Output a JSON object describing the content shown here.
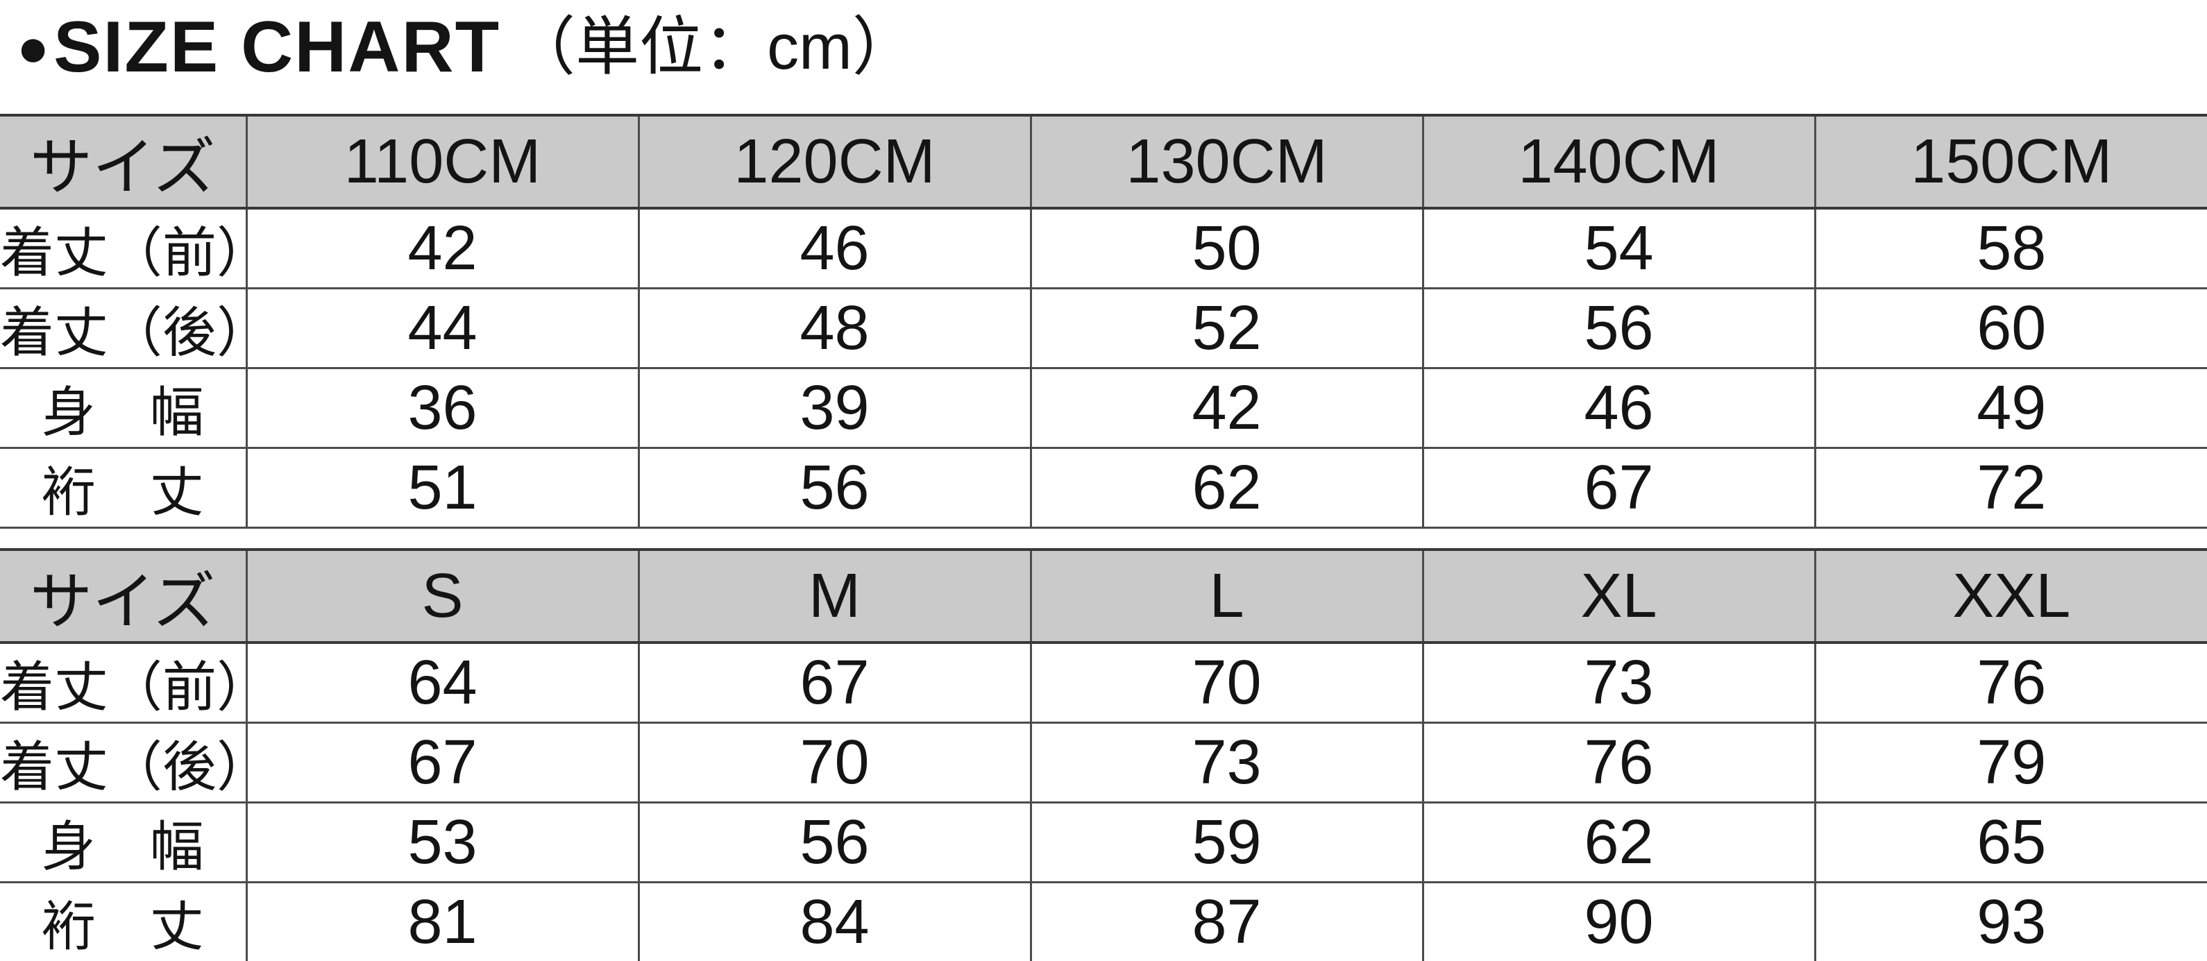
{
  "title": {
    "bullet": "●",
    "main": "SIZE CHART",
    "unit": "（単位：cm）"
  },
  "colors": {
    "background": "#ffffff",
    "text": "#141414",
    "header_bg": "#cacaca",
    "line_dark": "#383838",
    "line_mid": "#4c4c4c"
  },
  "chart_data": [
    {
      "type": "table",
      "title": "SIZE CHART（単位：cm） kids sizes",
      "columns": [
        "サイズ",
        "110CM",
        "120CM",
        "130CM",
        "140CM",
        "150CM"
      ],
      "rows": [
        [
          "着丈（前）",
          "42",
          "46",
          "50",
          "54",
          "58"
        ],
        [
          "着丈（後）",
          "44",
          "48",
          "52",
          "56",
          "60"
        ],
        [
          "身　幅",
          "36",
          "39",
          "42",
          "46",
          "49"
        ],
        [
          "裄　丈",
          "51",
          "56",
          "62",
          "67",
          "72"
        ]
      ]
    },
    {
      "type": "table",
      "title": "SIZE CHART（単位：cm） adult sizes",
      "columns": [
        "サイズ",
        "S",
        "M",
        "L",
        "XL",
        "XXL"
      ],
      "rows": [
        [
          "着丈（前）",
          "64",
          "67",
          "70",
          "73",
          "76"
        ],
        [
          "着丈（後）",
          "67",
          "70",
          "73",
          "76",
          "79"
        ],
        [
          "身　幅",
          "53",
          "56",
          "59",
          "62",
          "65"
        ],
        [
          "裄　丈",
          "81",
          "84",
          "87",
          "90",
          "93"
        ]
      ]
    }
  ]
}
